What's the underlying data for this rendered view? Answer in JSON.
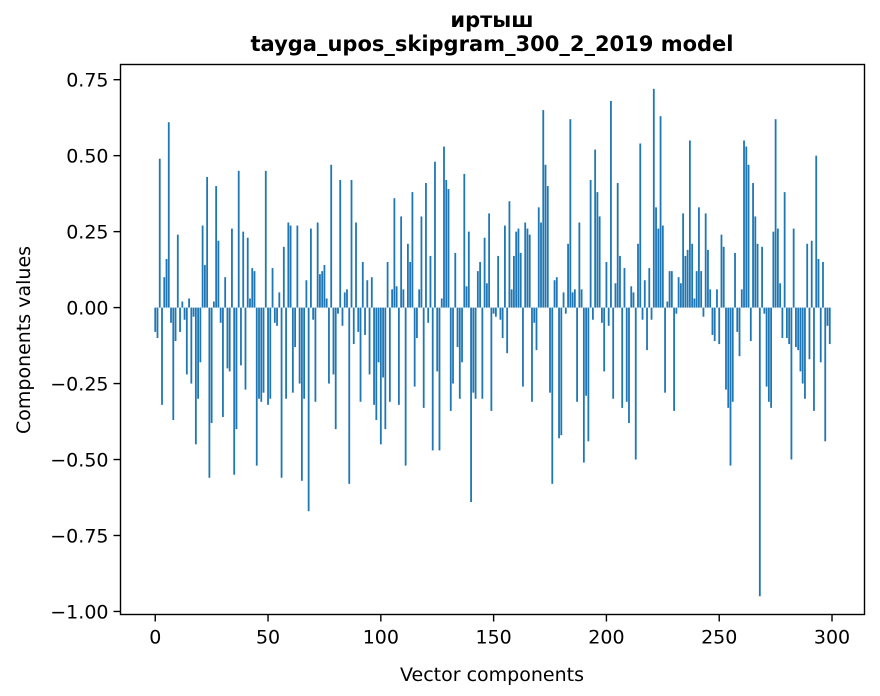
{
  "title": {
    "line1": "иртыш",
    "line2": "tayga_upos_skipgram_300_2_2019 model"
  },
  "chart_data": {
    "type": "bar",
    "title": "иртыш — tayga_upos_skipgram_300_2_2019 model",
    "xlabel": "Vector components",
    "ylabel": "Components values",
    "x_ticks": [
      0,
      50,
      100,
      150,
      200,
      250,
      300
    ],
    "x_tick_labels": [
      "0",
      "50",
      "100",
      "150",
      "200",
      "250",
      "300"
    ],
    "y_ticks": [
      0.75,
      0.5,
      0.25,
      0.0,
      -0.25,
      -0.5,
      -0.75,
      -1.0
    ],
    "y_tick_labels": [
      "0.75",
      "0.50",
      "0.25",
      "0.00",
      "−0.25",
      "−0.50",
      "−0.75",
      "−1.00"
    ],
    "xlim": [
      -15.4,
      314.4
    ],
    "ylim": [
      -1.01,
      0.8
    ],
    "grid": false,
    "legend": "none",
    "bar_color": "#1f77b4",
    "spine_color": "#000000",
    "background_color": "#ffffff",
    "n_components": 300,
    "bar_rel_width": 0.8,
    "values": [
      -0.08,
      -0.1,
      0.49,
      -0.32,
      0.1,
      0.16,
      0.61,
      -0.05,
      -0.37,
      -0.11,
      0.24,
      -0.08,
      0.02,
      -0.04,
      -0.22,
      0.03,
      -0.25,
      -0.03,
      -0.45,
      -0.3,
      -0.18,
      0.27,
      0.14,
      0.43,
      -0.56,
      -0.38,
      0.02,
      0.4,
      0.22,
      -0.05,
      -0.36,
      0.1,
      -0.2,
      -0.21,
      0.26,
      -0.55,
      -0.4,
      0.45,
      -0.19,
      0.25,
      -0.27,
      0.23,
      0.03,
      0.13,
      0.12,
      -0.52,
      -0.3,
      -0.31,
      -0.28,
      0.45,
      -0.32,
      -0.3,
      0.13,
      -0.05,
      -0.06,
      0.05,
      -0.56,
      0.2,
      -0.3,
      0.28,
      0.27,
      -0.28,
      -0.13,
      0.27,
      -0.25,
      -0.57,
      -0.3,
      0.09,
      -0.67,
      0.26,
      -0.04,
      -0.31,
      0.28,
      0.11,
      0.12,
      0.14,
      0.03,
      -0.25,
      0.47,
      -0.22,
      -0.4,
      -0.02,
      0.42,
      -0.06,
      0.05,
      0.06,
      -0.58,
      0.42,
      -0.12,
      0.28,
      -0.08,
      -0.31,
      0.15,
      -0.09,
      0.09,
      -0.22,
      0.1,
      -0.32,
      -0.37,
      -0.18,
      -0.45,
      -0.23,
      -0.4,
      0.15,
      -0.31,
      0.06,
      0.36,
      0.07,
      -0.32,
      0.3,
      0.06,
      -0.52,
      0.21,
      0.15,
      0.38,
      -0.26,
      -0.1,
      0.06,
      0.3,
      -0.33,
      0.41,
      -0.05,
      0.17,
      -0.47,
      0.48,
      -0.21,
      -0.47,
      0.03,
      0.53,
      0.42,
      0.39,
      -0.34,
      -0.25,
      0.18,
      -0.13,
      -0.3,
      -0.18,
      0.44,
      0.07,
      0.25,
      -0.64,
      -0.28,
      -0.3,
      0.12,
      0.15,
      -0.3,
      0.23,
      0.08,
      0.31,
      -0.34,
      -0.02,
      -0.03,
      0.17,
      -0.04,
      -0.1,
      0.27,
      -0.15,
      0.35,
      0.06,
      0.17,
      0.25,
      0.26,
      0.18,
      -0.26,
      0.28,
      0.26,
      0.24,
      -0.31,
      -0.05,
      -0.14,
      0.33,
      0.28,
      0.65,
      0.47,
      0.4,
      -0.28,
      -0.58,
      0.09,
      0.1,
      -0.43,
      -0.42,
      0.05,
      -0.02,
      0.21,
      0.62,
      0.05,
      0.06,
      -0.31,
      0.28,
      0.06,
      -0.51,
      -0.29,
      -0.44,
      0.42,
      -0.04,
      0.52,
      0.38,
      0.3,
      -0.05,
      -0.21,
      0.15,
      -0.06,
      0.68,
      -0.3,
      0.08,
      0.41,
      0.17,
      -0.33,
      0.13,
      -0.31,
      -0.38,
      0.07,
      0.05,
      -0.5,
      0.21,
      0.54,
      -0.04,
      0.09,
      -0.14,
      0.13,
      -0.04,
      0.72,
      0.33,
      0.26,
      0.63,
      0.27,
      -0.28,
      0.02,
      0.12,
      0.12,
      -0.34,
      -0.02,
      0.1,
      0.08,
      0.31,
      0.17,
      0.19,
      0.55,
      0.21,
      0.03,
      0.12,
      0.33,
      0.12,
      -0.03,
      0.31,
      0.19,
      0.06,
      -0.09,
      -0.11,
      0.06,
      -0.12,
      0.24,
      0.2,
      -0.27,
      -0.33,
      -0.52,
      -0.31,
      0.18,
      -0.08,
      -0.16,
      0.06,
      0.55,
      0.53,
      0.47,
      -0.11,
      0.41,
      0.3,
      0.21,
      -0.95,
      0.2,
      -0.02,
      -0.26,
      -0.31,
      -0.33,
      0.25,
      0.62,
      0.26,
      0.08,
      -0.1,
      0.38,
      -0.1,
      -0.12,
      -0.5,
      0.26,
      -0.13,
      -0.14,
      -0.21,
      -0.25,
      -0.3,
      0.21,
      -0.17,
      0.22,
      -0.34,
      0.5,
      0.16,
      -0.18,
      0.15,
      -0.44,
      -0.06,
      -0.12
    ]
  }
}
